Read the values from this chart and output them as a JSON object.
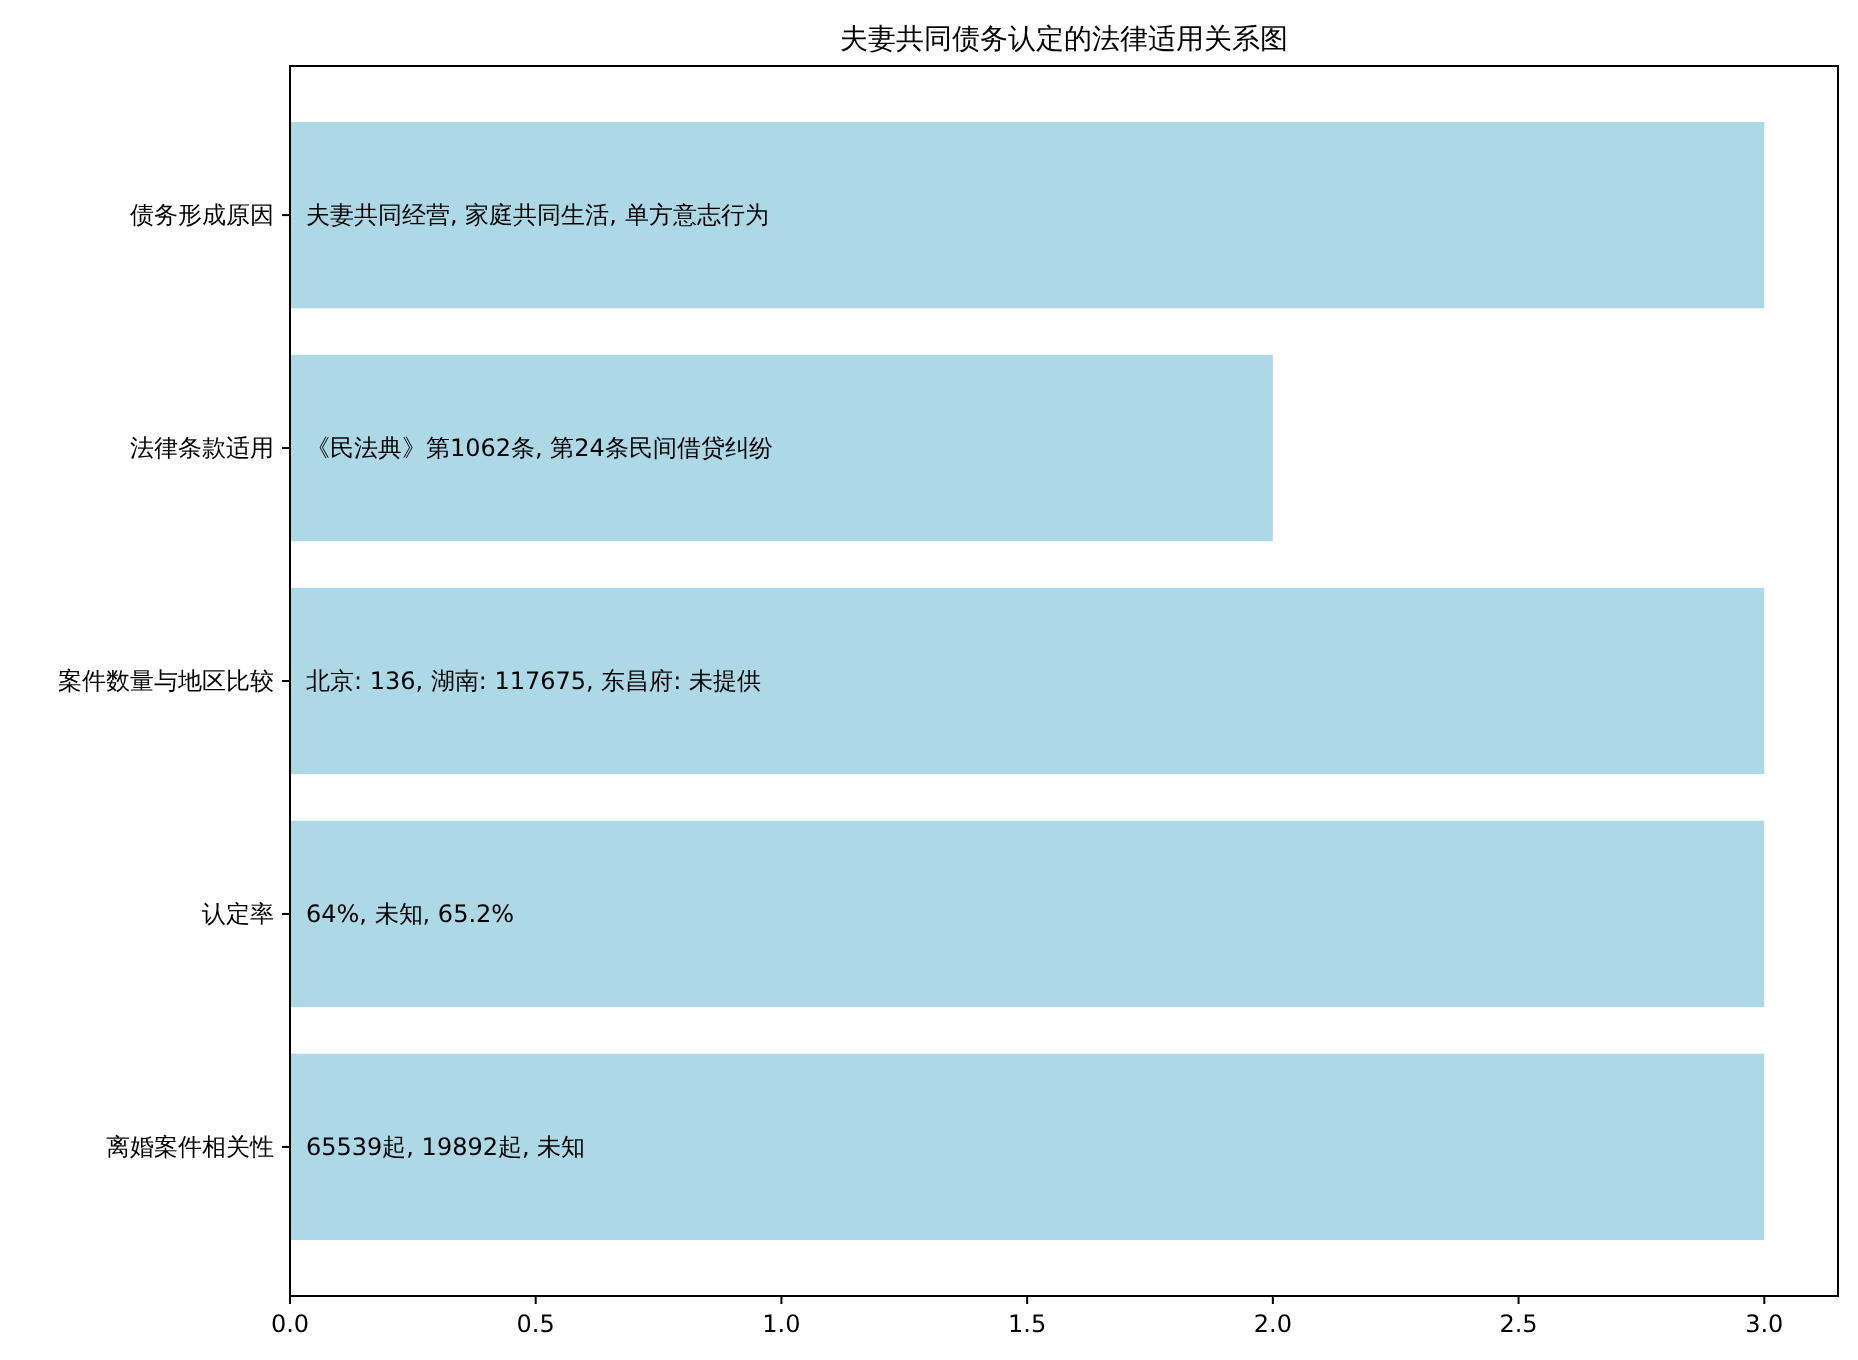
{
  "chart_data": {
    "type": "bar",
    "orientation": "horizontal",
    "title": "夫妻共同债务认定的法律适用关系图",
    "categories": [
      "债务形成原因",
      "法律条款适用",
      "案件数量与地区比较",
      "认定率",
      "离婚案件相关性"
    ],
    "values": [
      3,
      2,
      3,
      3,
      3
    ],
    "color": "#add8e6",
    "xlim": [
      0,
      3.15
    ],
    "xticks": [
      {
        "value": 0,
        "label": "0.0"
      },
      {
        "value": 0.5,
        "label": "0.5"
      },
      {
        "value": 1,
        "label": "1.0"
      },
      {
        "value": 1.5,
        "label": "1.5"
      },
      {
        "value": 2,
        "label": "2.0"
      },
      {
        "value": 2.5,
        "label": "2.5"
      },
      {
        "value": 3,
        "label": "3.0"
      }
    ],
    "annotations": [
      "夫妻共同经营, 家庭共同生活, 单方意志行为",
      "《民法典》第1062条, 第24条民间借贷纠纷",
      "北京: 136, 湖南: 117675, 东昌府: 未提供",
      "64%, 未知, 65.2%",
      "65539起, 19892起, 未知"
    ],
    "grid": false
  }
}
